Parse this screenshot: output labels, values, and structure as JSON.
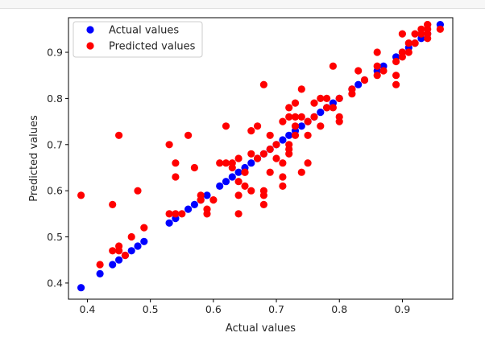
{
  "chart_data": {
    "type": "scatter",
    "title": "",
    "xlabel": "Actual values",
    "ylabel": "Predicted values",
    "xlim": [
      0.37,
      0.98
    ],
    "ylim": [
      0.365,
      0.975
    ],
    "xticks": [
      "0.4",
      "0.5",
      "0.6",
      "0.7",
      "0.8",
      "0.9"
    ],
    "yticks": [
      "0.4",
      "0.5",
      "0.6",
      "0.7",
      "0.8",
      "0.9"
    ],
    "grid": false,
    "legend_position": "top-left",
    "series": [
      {
        "name": "Actual values",
        "color": "#0000ff",
        "x": [
          0.39,
          0.42,
          0.44,
          0.45,
          0.46,
          0.47,
          0.48,
          0.49,
          0.53,
          0.54,
          0.56,
          0.57,
          0.58,
          0.59,
          0.61,
          0.62,
          0.63,
          0.64,
          0.65,
          0.66,
          0.67,
          0.68,
          0.69,
          0.7,
          0.71,
          0.72,
          0.73,
          0.74,
          0.75,
          0.76,
          0.77,
          0.78,
          0.79,
          0.8,
          0.82,
          0.83,
          0.84,
          0.86,
          0.87,
          0.89,
          0.9,
          0.91,
          0.92,
          0.93,
          0.94,
          0.96
        ],
        "y": [
          0.39,
          0.42,
          0.44,
          0.45,
          0.46,
          0.47,
          0.48,
          0.49,
          0.53,
          0.54,
          0.56,
          0.57,
          0.58,
          0.59,
          0.61,
          0.62,
          0.63,
          0.64,
          0.65,
          0.66,
          0.67,
          0.68,
          0.69,
          0.7,
          0.71,
          0.72,
          0.73,
          0.74,
          0.75,
          0.76,
          0.77,
          0.78,
          0.79,
          0.8,
          0.82,
          0.83,
          0.84,
          0.86,
          0.87,
          0.89,
          0.9,
          0.91,
          0.92,
          0.93,
          0.94,
          0.96
        ]
      },
      {
        "name": "Predicted values",
        "color": "#ff0000",
        "x": [
          0.39,
          0.42,
          0.44,
          0.44,
          0.45,
          0.45,
          0.45,
          0.46,
          0.47,
          0.48,
          0.49,
          0.53,
          0.53,
          0.54,
          0.54,
          0.54,
          0.55,
          0.56,
          0.57,
          0.58,
          0.58,
          0.59,
          0.59,
          0.6,
          0.61,
          0.62,
          0.62,
          0.63,
          0.63,
          0.64,
          0.64,
          0.64,
          0.64,
          0.65,
          0.65,
          0.65,
          0.66,
          0.66,
          0.66,
          0.67,
          0.67,
          0.68,
          0.68,
          0.68,
          0.68,
          0.68,
          0.69,
          0.69,
          0.69,
          0.7,
          0.7,
          0.71,
          0.71,
          0.71,
          0.71,
          0.72,
          0.72,
          0.72,
          0.72,
          0.72,
          0.73,
          0.73,
          0.73,
          0.73,
          0.74,
          0.74,
          0.74,
          0.75,
          0.75,
          0.75,
          0.76,
          0.76,
          0.77,
          0.77,
          0.78,
          0.78,
          0.79,
          0.79,
          0.8,
          0.8,
          0.8,
          0.82,
          0.82,
          0.83,
          0.84,
          0.86,
          0.86,
          0.86,
          0.87,
          0.89,
          0.89,
          0.89,
          0.9,
          0.9,
          0.9,
          0.91,
          0.91,
          0.92,
          0.92,
          0.93,
          0.93,
          0.94,
          0.94,
          0.94,
          0.94,
          0.94,
          0.96
        ],
        "y": [
          0.59,
          0.44,
          0.57,
          0.47,
          0.72,
          0.48,
          0.47,
          0.46,
          0.5,
          0.6,
          0.52,
          0.7,
          0.55,
          0.66,
          0.55,
          0.63,
          0.55,
          0.72,
          0.65,
          0.59,
          0.58,
          0.56,
          0.55,
          0.58,
          0.66,
          0.74,
          0.66,
          0.65,
          0.66,
          0.67,
          0.59,
          0.55,
          0.62,
          0.64,
          0.61,
          0.64,
          0.73,
          0.68,
          0.6,
          0.74,
          0.67,
          0.83,
          0.59,
          0.68,
          0.6,
          0.57,
          0.64,
          0.72,
          0.69,
          0.7,
          0.67,
          0.75,
          0.66,
          0.61,
          0.63,
          0.78,
          0.76,
          0.7,
          0.69,
          0.68,
          0.79,
          0.74,
          0.76,
          0.72,
          0.82,
          0.76,
          0.64,
          0.75,
          0.72,
          0.66,
          0.79,
          0.76,
          0.8,
          0.74,
          0.78,
          0.8,
          0.87,
          0.78,
          0.8,
          0.75,
          0.76,
          0.81,
          0.82,
          0.86,
          0.84,
          0.85,
          0.9,
          0.87,
          0.86,
          0.88,
          0.85,
          0.83,
          0.94,
          0.9,
          0.89,
          0.92,
          0.9,
          0.94,
          0.92,
          0.95,
          0.94,
          0.96,
          0.95,
          0.94,
          0.93,
          0.96,
          0.95
        ]
      }
    ]
  }
}
